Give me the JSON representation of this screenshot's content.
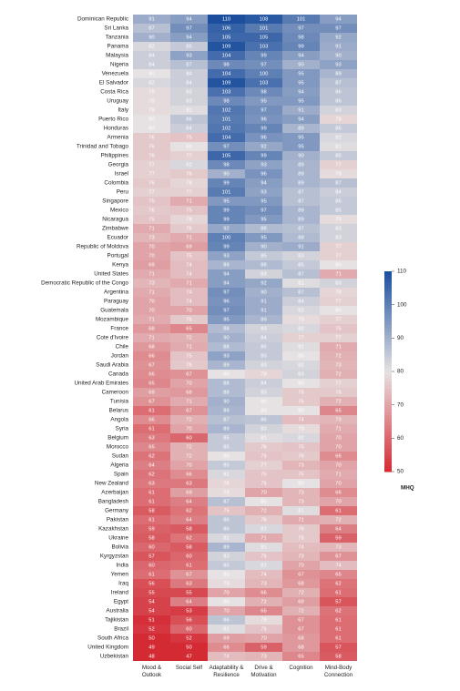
{
  "chart_data": {
    "type": "heatmap",
    "columns": [
      "Mood & Outlook",
      "Social Self",
      "Adaptability & Resilience",
      "Drive & Motivation",
      "Cognition",
      "Mind-Body Connection"
    ],
    "rows": [
      "Dominican Republic",
      "Sri Lanka",
      "Tanzania",
      "Panama",
      "Malaysia",
      "Nigeria",
      "Venezuela",
      "El Salvador",
      "Costa Rica",
      "Uruguay",
      "Italy",
      "Puerto Rico",
      "Honduras",
      "Armenia",
      "Trinidad and Tobago",
      "Philippines",
      "Georgia",
      "Israel",
      "Colombia",
      "Peru",
      "Singapore",
      "Mexico",
      "Nicaragua",
      "Zimbabwe",
      "Ecuador",
      "Republic of Moldova",
      "Portugal",
      "Kenya",
      "United States",
      "Democratic Republic of the Congo",
      "Argentina",
      "Paraguay",
      "Guatemala",
      "Mozambique",
      "France",
      "Cote d'Ivoire",
      "Chile",
      "Jordan",
      "Saudi Arabia",
      "Canada",
      "United Arab Emirates",
      "Cameroon",
      "Tunisia",
      "Belarus",
      "Angola",
      "Syria",
      "Belgium",
      "Morocco",
      "Sudan",
      "Algeria",
      "Spain",
      "New Zealand",
      "Azerbaijan",
      "Bangladesh",
      "Germany",
      "Pakistan",
      "Kazakhstan",
      "Ukraine",
      "Bolivia",
      "Kyrgyzstan",
      "India",
      "Yemen",
      "Iraq",
      "Ireland",
      "Egypt",
      "Australia",
      "Tajikistan",
      "Brazil",
      "South Africa",
      "United Kingdom",
      "Uzbekistan"
    ],
    "values": [
      [
        91,
        94,
        110,
        108,
        101,
        94
      ],
      [
        87,
        97,
        106,
        101,
        97,
        97
      ],
      [
        90,
        94,
        105,
        105,
        98,
        92
      ],
      [
        82,
        85,
        109,
        103,
        99,
        91
      ],
      [
        84,
        93,
        104,
        99,
        94,
        90
      ],
      [
        84,
        87,
        98,
        97,
        90,
        93
      ],
      [
        80,
        84,
        104,
        100,
        95,
        89
      ],
      [
        82,
        84,
        109,
        103,
        95,
        87
      ],
      [
        79,
        83,
        103,
        98,
        94,
        86
      ],
      [
        79,
        83,
        98,
        95,
        95,
        86
      ],
      [
        79,
        81,
        102,
        97,
        91,
        83
      ],
      [
        80,
        86,
        101,
        96,
        94,
        78
      ],
      [
        80,
        84,
        102,
        99,
        89,
        85
      ],
      [
        76,
        75,
        104,
        96,
        95,
        82
      ],
      [
        76,
        80,
        97,
        92,
        95,
        81
      ],
      [
        76,
        77,
        105,
        99,
        90,
        85
      ],
      [
        77,
        82,
        98,
        93,
        89,
        77
      ],
      [
        77,
        76,
        90,
        96,
        89,
        79
      ],
      [
        76,
        78,
        99,
        94,
        89,
        87
      ],
      [
        77,
        77,
        101,
        93,
        87,
        84
      ],
      [
        75,
        71,
        95,
        95,
        87,
        85
      ],
      [
        76,
        75,
        99,
        97,
        89,
        85
      ],
      [
        75,
        78,
        99,
        95,
        89,
        79
      ],
      [
        71,
        76,
        92,
        88,
        87,
        83
      ],
      [
        73,
        71,
        100,
        95,
        88,
        83
      ],
      [
        70,
        69,
        99,
        90,
        91,
        77
      ],
      [
        70,
        75,
        93,
        85,
        83,
        77
      ],
      [
        69,
        74,
        89,
        88,
        85,
        80
      ],
      [
        71,
        74,
        94,
        83,
        87,
        71
      ],
      [
        73,
        71,
        94,
        92,
        81,
        83
      ],
      [
        71,
        74,
        97,
        90,
        87,
        78
      ],
      [
        70,
        74,
        96,
        91,
        84,
        77
      ],
      [
        70,
        70,
        97,
        91,
        82,
        80
      ],
      [
        71,
        76,
        95,
        89,
        79,
        77
      ],
      [
        68,
        65,
        88,
        83,
        82,
        75
      ],
      [
        71,
        72,
        90,
        84,
        77,
        77
      ],
      [
        68,
        71,
        88,
        85,
        81,
        71
      ],
      [
        66,
        75,
        93,
        85,
        80,
        72
      ],
      [
        67,
        76,
        89,
        83,
        82,
        73
      ],
      [
        66,
        67,
        80,
        78,
        83,
        72
      ],
      [
        65,
        70,
        88,
        84,
        80,
        77
      ],
      [
        69,
        68,
        88,
        83,
        76,
        76
      ],
      [
        67,
        71,
        90,
        80,
        76,
        72
      ],
      [
        61,
        67,
        89,
        80,
        80,
        65
      ],
      [
        66,
        72,
        87,
        86,
        74,
        73
      ],
      [
        61,
        70,
        89,
        83,
        79,
        71
      ],
      [
        63,
        60,
        85,
        81,
        82,
        70
      ],
      [
        65,
        72,
        85,
        76,
        75,
        70
      ],
      [
        62,
        72,
        80,
        75,
        76,
        66
      ],
      [
        64,
        70,
        85,
        77,
        73,
        70
      ],
      [
        62,
        66,
        82,
        75,
        75,
        71
      ],
      [
        63,
        63,
        78,
        75,
        80,
        70
      ],
      [
        61,
        69,
        79,
        70,
        73,
        66
      ],
      [
        61,
        64,
        87,
        80,
        73,
        70
      ],
      [
        58,
        62,
        75,
        72,
        81,
        61
      ],
      [
        61,
        64,
        86,
        76,
        71,
        72
      ],
      [
        59,
        58,
        86,
        82,
        76,
        64
      ],
      [
        58,
        62,
        82,
        71,
        76,
        59
      ],
      [
        60,
        58,
        89,
        81,
        74,
        73
      ],
      [
        57,
        60,
        83,
        75,
        73,
        67
      ],
      [
        60,
        61,
        85,
        82,
        70,
        74
      ],
      [
        61,
        67,
        80,
        74,
        67,
        65
      ],
      [
        56,
        63,
        79,
        73,
        68,
        62
      ],
      [
        55,
        55,
        70,
        66,
        72,
        61
      ],
      [
        54,
        64,
        80,
        72,
        69,
        57
      ],
      [
        54,
        53,
        70,
        65,
        72,
        62
      ],
      [
        51,
        56,
        86,
        79,
        67,
        61
      ],
      [
        52,
        60,
        81,
        75,
        67,
        61
      ],
      [
        50,
        52,
        69,
        70,
        68,
        61
      ],
      [
        49,
        50,
        66,
        59,
        68,
        57
      ],
      [
        48,
        47,
        74,
        73,
        65,
        58
      ]
    ],
    "zlim": [
      50,
      110
    ],
    "zticks": [
      50,
      60,
      70,
      80,
      90,
      100,
      110
    ],
    "colors": [
      "#d42a33",
      "#e6e1e2",
      "#1b4f9e"
    ],
    "colorbar_label": "MHQ"
  }
}
